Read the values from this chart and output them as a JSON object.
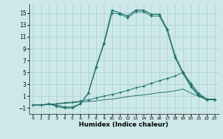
{
  "xlabel": "Humidex (Indice chaleur)",
  "bg_color": "#cce8e8",
  "grid_color": "#aacccc",
  "line_color": "#1a6e6a",
  "xlim": [
    -0.5,
    23.5
  ],
  "ylim": [
    -2,
    16.5
  ],
  "xticks": [
    0,
    1,
    2,
    3,
    4,
    5,
    6,
    7,
    8,
    9,
    10,
    11,
    12,
    13,
    14,
    15,
    16,
    17,
    18,
    19,
    20,
    21,
    22,
    23
  ],
  "yticks": [
    -1,
    1,
    3,
    5,
    7,
    9,
    11,
    13,
    15
  ],
  "line1_x": [
    0,
    1,
    2,
    3,
    4,
    5,
    6,
    7,
    8,
    9,
    10,
    11,
    12,
    13,
    14,
    15,
    16,
    17,
    18,
    19,
    20,
    21,
    22,
    23
  ],
  "line1_y": [
    -0.5,
    -0.5,
    -0.3,
    -0.7,
    -1.0,
    -1.0,
    -0.3,
    1.5,
    6.0,
    10.0,
    15.5,
    15.0,
    14.5,
    15.5,
    15.5,
    14.8,
    14.8,
    12.3,
    7.8,
    5.0,
    2.8,
    1.2,
    0.5,
    0.5
  ],
  "line2_x": [
    0,
    1,
    2,
    3,
    4,
    5,
    6,
    7,
    8,
    9,
    10,
    11,
    12,
    13,
    14,
    15,
    16,
    17,
    18,
    19,
    20,
    21,
    22,
    23
  ],
  "line2_y": [
    -0.5,
    -0.5,
    -0.3,
    -0.5,
    -0.8,
    -0.8,
    -0.3,
    1.5,
    5.8,
    9.8,
    15.0,
    14.8,
    14.2,
    15.2,
    15.2,
    14.5,
    14.5,
    12.0,
    7.5,
    4.8,
    2.6,
    1.0,
    0.4,
    0.4
  ],
  "line3_x": [
    0,
    1,
    2,
    3,
    4,
    5,
    6,
    7,
    8,
    9,
    10,
    11,
    12,
    13,
    14,
    15,
    16,
    17,
    18,
    19,
    20,
    21,
    22,
    23
  ],
  "line3_y": [
    -0.5,
    -0.5,
    -0.4,
    -0.3,
    -0.1,
    0.0,
    0.2,
    0.4,
    0.7,
    1.0,
    1.3,
    1.6,
    2.0,
    2.4,
    2.7,
    3.2,
    3.6,
    4.0,
    4.4,
    5.0,
    3.2,
    1.5,
    0.5,
    0.5
  ],
  "line4_x": [
    0,
    1,
    2,
    3,
    4,
    5,
    6,
    7,
    8,
    9,
    10,
    11,
    12,
    13,
    14,
    15,
    16,
    17,
    18,
    19,
    20,
    21,
    22,
    23
  ],
  "line4_y": [
    -0.5,
    -0.5,
    -0.4,
    -0.3,
    -0.2,
    -0.1,
    0.0,
    0.1,
    0.2,
    0.4,
    0.5,
    0.7,
    0.9,
    1.1,
    1.2,
    1.4,
    1.6,
    1.7,
    1.9,
    2.2,
    1.5,
    1.0,
    0.4,
    0.4
  ]
}
